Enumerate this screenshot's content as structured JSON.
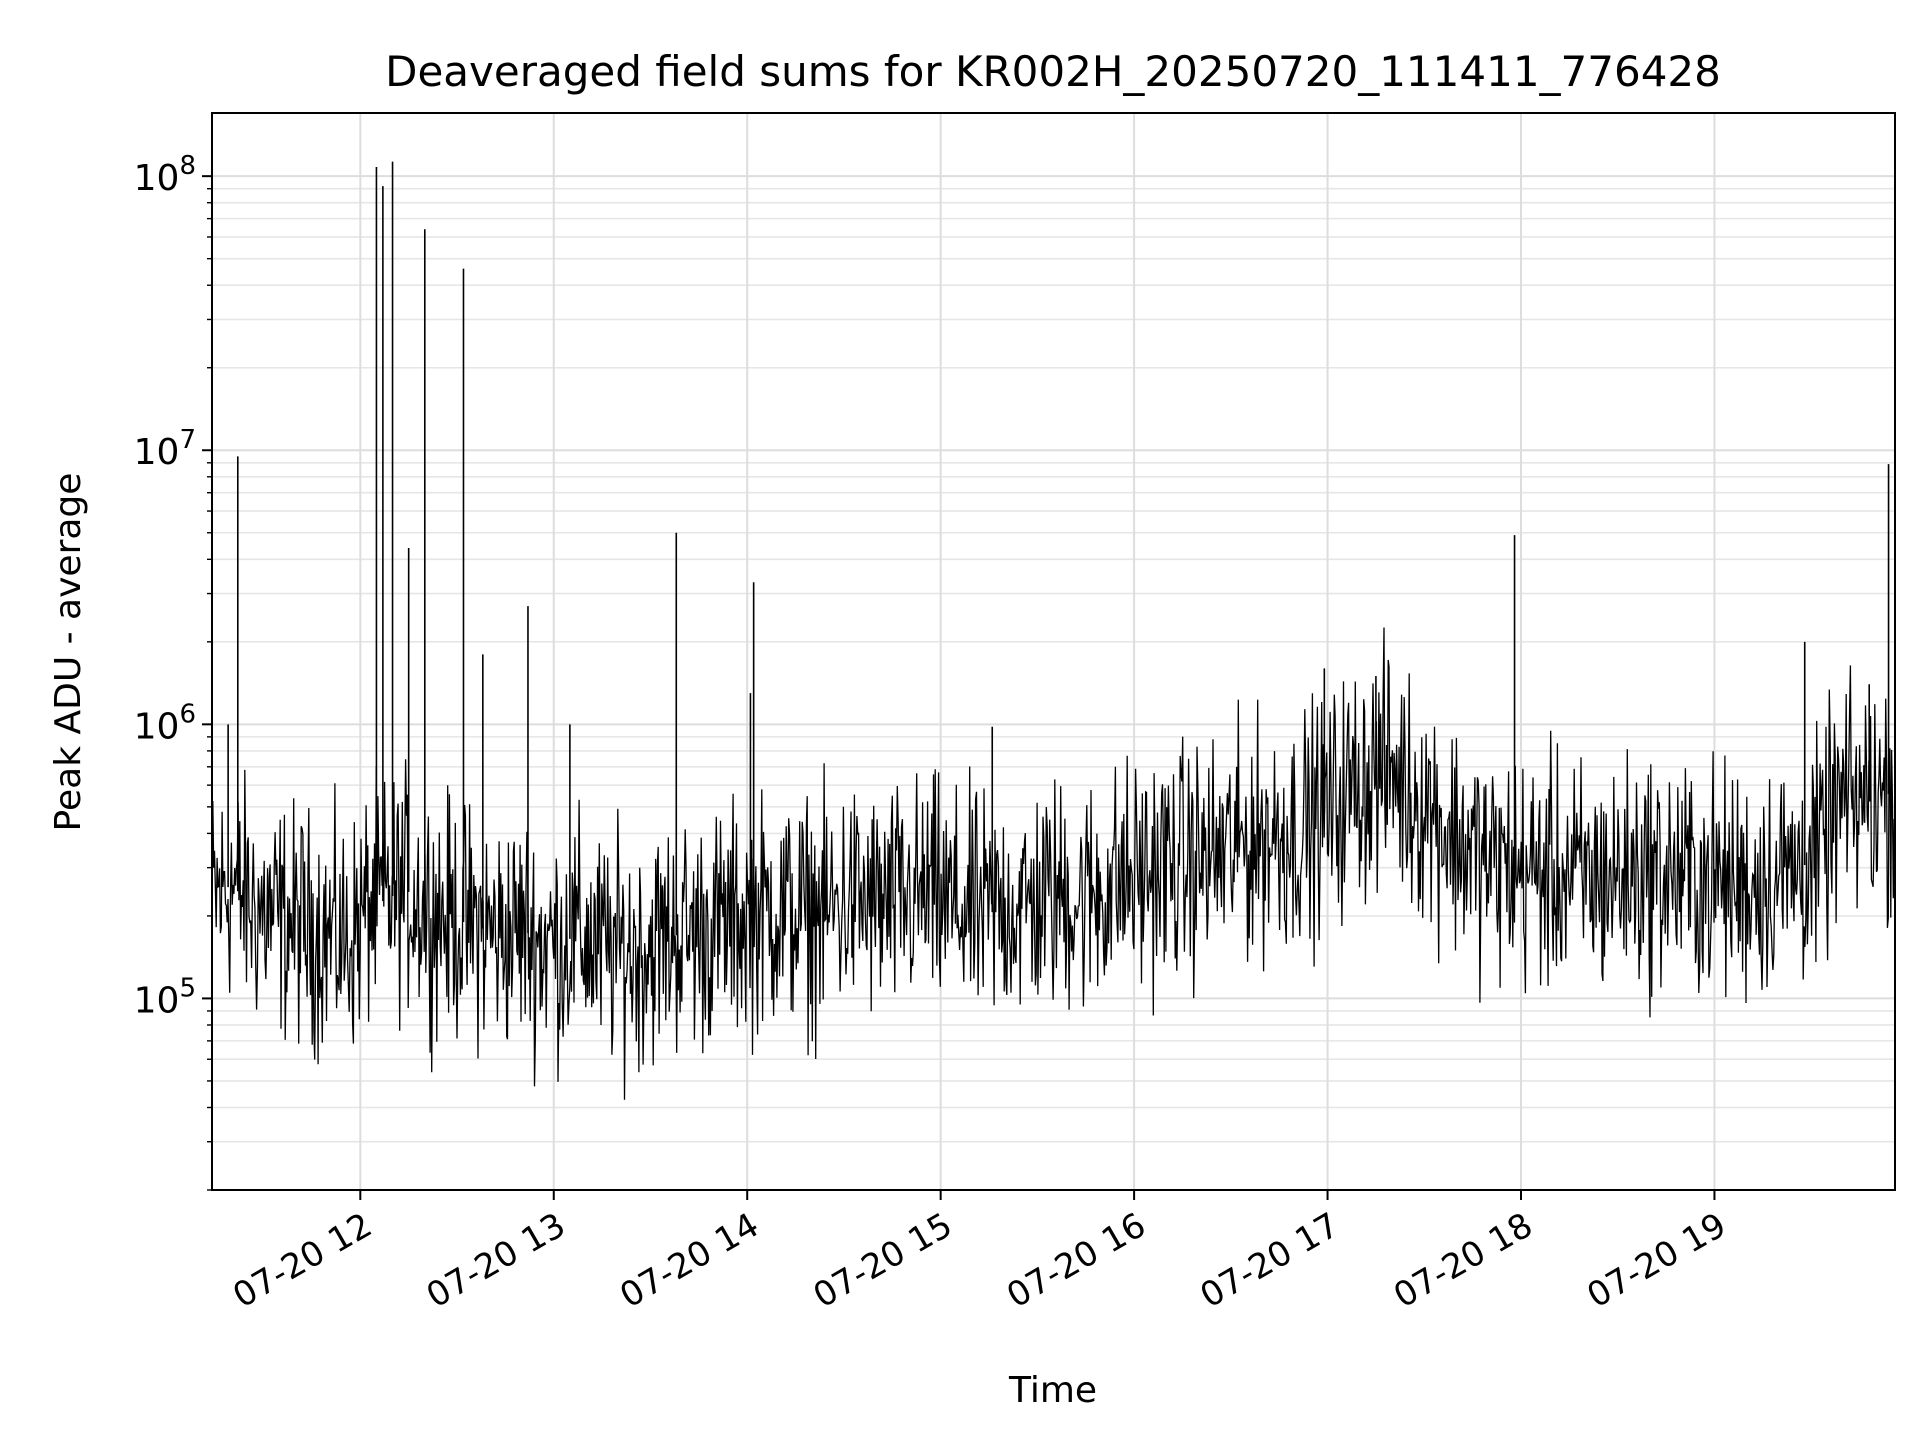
{
  "chart_data": {
    "type": "line",
    "title": "Deaveraged field sums for KR002H_20250720_111411_776428",
    "xlabel": "Time",
    "ylabel": "Peak ADU - average",
    "x_range": [
      "2025-07-20T11:14",
      "2025-07-20T19:56"
    ],
    "ylim": [
      20000,
      170000000
    ],
    "y_scale": "log",
    "grid": true,
    "grid_minor_y": true,
    "line_color": "#000000",
    "x_ticks": [
      {
        "value": "2025-07-20T12:00",
        "label": "07-20 12"
      },
      {
        "value": "2025-07-20T13:00",
        "label": "07-20 13"
      },
      {
        "value": "2025-07-20T14:00",
        "label": "07-20 14"
      },
      {
        "value": "2025-07-20T15:00",
        "label": "07-20 15"
      },
      {
        "value": "2025-07-20T16:00",
        "label": "07-20 16"
      },
      {
        "value": "2025-07-20T17:00",
        "label": "07-20 17"
      },
      {
        "value": "2025-07-20T18:00",
        "label": "07-20 18"
      },
      {
        "value": "2025-07-20T19:00",
        "label": "07-20 19"
      }
    ],
    "y_ticks": [
      {
        "value": 100000,
        "base": "10",
        "exp": "5"
      },
      {
        "value": 1000000,
        "base": "10",
        "exp": "6"
      },
      {
        "value": 10000000,
        "base": "10",
        "exp": "7"
      },
      {
        "value": 100000000,
        "base": "10",
        "exp": "8"
      }
    ],
    "series": [
      {
        "x": [
          "2025-07-20T11:14",
          "2025-07-20T11:20",
          "2025-07-20T11:26",
          "2025-07-20T11:32",
          "2025-07-20T11:38",
          "2025-07-20T11:44",
          "2025-07-20T11:50",
          "2025-07-20T11:56",
          "2025-07-20T12:02",
          "2025-07-20T12:08",
          "2025-07-20T12:14",
          "2025-07-20T12:20",
          "2025-07-20T12:26",
          "2025-07-20T12:32",
          "2025-07-20T12:38",
          "2025-07-20T12:44",
          "2025-07-20T12:50",
          "2025-07-20T12:56",
          "2025-07-20T13:02",
          "2025-07-20T13:08",
          "2025-07-20T13:14",
          "2025-07-20T13:20",
          "2025-07-20T13:26",
          "2025-07-20T13:32",
          "2025-07-20T13:38",
          "2025-07-20T13:44",
          "2025-07-20T13:50",
          "2025-07-20T13:56",
          "2025-07-20T14:02",
          "2025-07-20T14:08",
          "2025-07-20T14:14",
          "2025-07-20T14:20",
          "2025-07-20T14:26",
          "2025-07-20T14:32",
          "2025-07-20T14:38",
          "2025-07-20T14:44",
          "2025-07-20T14:50",
          "2025-07-20T14:56",
          "2025-07-20T15:02",
          "2025-07-20T15:08",
          "2025-07-20T15:14",
          "2025-07-20T15:20",
          "2025-07-20T15:26",
          "2025-07-20T15:32",
          "2025-07-20T15:38",
          "2025-07-20T15:44",
          "2025-07-20T15:50",
          "2025-07-20T15:56",
          "2025-07-20T16:02",
          "2025-07-20T16:08",
          "2025-07-20T16:14",
          "2025-07-20T16:20",
          "2025-07-20T16:26",
          "2025-07-20T16:32",
          "2025-07-20T16:38",
          "2025-07-20T16:44",
          "2025-07-20T16:50",
          "2025-07-20T16:56",
          "2025-07-20T17:02",
          "2025-07-20T17:08",
          "2025-07-20T17:14",
          "2025-07-20T17:20",
          "2025-07-20T17:26",
          "2025-07-20T17:32",
          "2025-07-20T17:38",
          "2025-07-20T17:44",
          "2025-07-20T17:50",
          "2025-07-20T17:56",
          "2025-07-20T18:02",
          "2025-07-20T18:08",
          "2025-07-20T18:14",
          "2025-07-20T18:20",
          "2025-07-20T18:26",
          "2025-07-20T18:32",
          "2025-07-20T18:38",
          "2025-07-20T18:44",
          "2025-07-20T18:50",
          "2025-07-20T18:56",
          "2025-07-20T19:02",
          "2025-07-20T19:08",
          "2025-07-20T19:14",
          "2025-07-20T19:20",
          "2025-07-20T19:26",
          "2025-07-20T19:32",
          "2025-07-20T19:38",
          "2025-07-20T19:44",
          "2025-07-20T19:50",
          "2025-07-20T19:56"
        ],
        "y": [
          230000,
          260000,
          220000,
          200000,
          190000,
          180000,
          170000,
          160000,
          210000,
          230000,
          250000,
          220000,
          200000,
          190000,
          180000,
          170000,
          180000,
          160000,
          160000,
          170000,
          150000,
          150000,
          150000,
          160000,
          170000,
          175000,
          180000,
          190000,
          200000,
          210000,
          205000,
          200000,
          210000,
          230000,
          220000,
          215000,
          230000,
          240000,
          220000,
          210000,
          200000,
          220000,
          215000,
          230000,
          240000,
          230000,
          250000,
          270000,
          280000,
          300000,
          310000,
          320000,
          330000,
          360000,
          380000,
          400000,
          400000,
          450000,
          500000,
          600000,
          650000,
          700000,
          550000,
          500000,
          400000,
          350000,
          310000,
          300000,
          290000,
          285000,
          280000,
          270000,
          275000,
          280000,
          290000,
          285000,
          280000,
          270000,
          265000,
          260000,
          270000,
          280000,
          300000,
          320000,
          500000,
          520000,
          550000,
          560000
        ]
      }
    ],
    "spikes": [
      {
        "x": "2025-07-20T11:22",
        "y": 9500000
      },
      {
        "x": "2025-07-20T11:19",
        "y": 1000000
      },
      {
        "x": "2025-07-20T12:05",
        "y": 108000000
      },
      {
        "x": "2025-07-20T12:07",
        "y": 92000000
      },
      {
        "x": "2025-07-20T12:10",
        "y": 113000000
      },
      {
        "x": "2025-07-20T12:15",
        "y": 4400000
      },
      {
        "x": "2025-07-20T12:20",
        "y": 64000000
      },
      {
        "x": "2025-07-20T12:32",
        "y": 46000000
      },
      {
        "x": "2025-07-20T12:38",
        "y": 1800000
      },
      {
        "x": "2025-07-20T12:52",
        "y": 2700000
      },
      {
        "x": "2025-07-20T13:05",
        "y": 1000000
      },
      {
        "x": "2025-07-20T13:38",
        "y": 5000000
      },
      {
        "x": "2025-07-20T14:01",
        "y": 1300000
      },
      {
        "x": "2025-07-20T14:02",
        "y": 3300000
      },
      {
        "x": "2025-07-20T15:16",
        "y": 980000
      },
      {
        "x": "2025-07-20T16:59",
        "y": 1600000
      },
      {
        "x": "2025-07-20T17:15",
        "y": 1500000
      },
      {
        "x": "2025-07-20T17:58",
        "y": 4900000
      },
      {
        "x": "2025-07-20T19:28",
        "y": 2000000
      },
      {
        "x": "2025-07-20T19:48",
        "y": 1400000
      },
      {
        "x": "2025-07-20T19:54",
        "y": 8900000
      }
    ]
  }
}
